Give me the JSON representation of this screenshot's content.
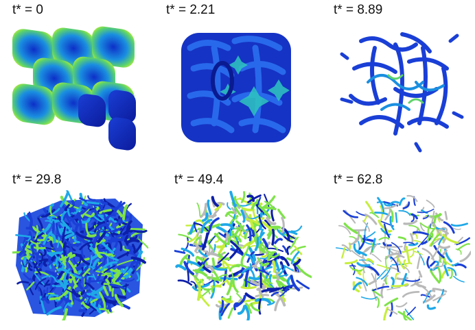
{
  "panels": [
    {
      "label": "t* = 0"
    },
    {
      "label": "t* = 2.21"
    },
    {
      "label": "t* = 8.89"
    },
    {
      "label": "t* = 29.8"
    },
    {
      "label": "t* = 49.4"
    },
    {
      "label": "t* = 62.8"
    }
  ],
  "colors": {
    "blue": "#1a3fd6",
    "dark_blue": "#0d1fa8",
    "cyan": "#1fa8e8",
    "green": "#7ee34a",
    "yellow_green": "#c6ee3c",
    "gray": "#b9b9b9"
  }
}
